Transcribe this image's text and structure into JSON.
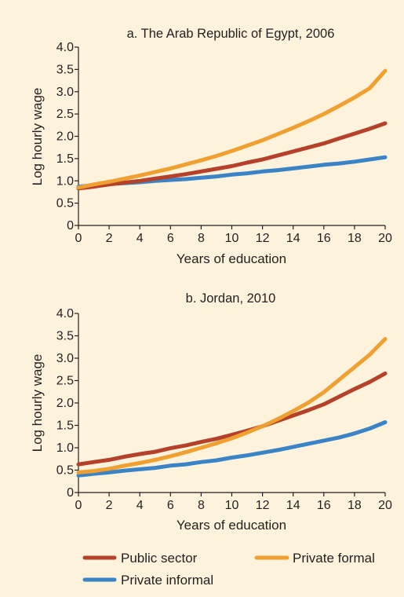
{
  "chart_data": [
    {
      "type": "line",
      "title": "a. The Arab Republic of Egypt, 2006",
      "xlabel": "Years of education",
      "ylabel": "Log hourly wage",
      "xlim": [
        0,
        20
      ],
      "ylim": [
        0,
        4.0
      ],
      "x_ticks": [
        "0",
        "2",
        "4",
        "6",
        "8",
        "10",
        "12",
        "14",
        "16",
        "18",
        "20"
      ],
      "y_ticks": [
        "0",
        "0.5",
        "1.0",
        "1.5",
        "2.0",
        "2.5",
        "3.0",
        "3.5",
        "4.0"
      ],
      "x": [
        0,
        1,
        2,
        3,
        4,
        5,
        6,
        7,
        8,
        9,
        10,
        11,
        12,
        13,
        14,
        15,
        16,
        17,
        18,
        19,
        20
      ],
      "series": [
        {
          "name": "Public sector",
          "color": "#b5412a",
          "values": [
            0.83,
            0.87,
            0.92,
            0.96,
            1.0,
            1.05,
            1.1,
            1.15,
            1.21,
            1.27,
            1.33,
            1.41,
            1.48,
            1.57,
            1.66,
            1.75,
            1.84,
            1.95,
            2.06,
            2.17,
            2.29
          ]
        },
        {
          "name": "Private formal",
          "color": "#f0a030",
          "values": [
            0.85,
            0.92,
            0.98,
            1.05,
            1.12,
            1.2,
            1.28,
            1.37,
            1.46,
            1.56,
            1.67,
            1.79,
            1.91,
            2.05,
            2.19,
            2.34,
            2.5,
            2.68,
            2.87,
            3.08,
            3.47
          ]
        },
        {
          "name": "Private informal",
          "color": "#3a83c6",
          "values": [
            0.87,
            0.9,
            0.93,
            0.95,
            0.97,
            1.0,
            1.02,
            1.04,
            1.07,
            1.1,
            1.14,
            1.17,
            1.21,
            1.24,
            1.28,
            1.32,
            1.36,
            1.39,
            1.43,
            1.48,
            1.53
          ]
        }
      ]
    },
    {
      "type": "line",
      "title": "b. Jordan, 2010",
      "xlabel": "Years of education",
      "ylabel": "Log hourly wage",
      "xlim": [
        0,
        20
      ],
      "ylim": [
        0,
        4.0
      ],
      "x_ticks": [
        "0",
        "2",
        "4",
        "6",
        "8",
        "10",
        "12",
        "14",
        "16",
        "18",
        "20"
      ],
      "y_ticks": [
        "0",
        "0.5",
        "1.0",
        "1.5",
        "2.0",
        "2.5",
        "3.0",
        "3.5",
        "4.0"
      ],
      "x": [
        0,
        1,
        2,
        3,
        4,
        5,
        6,
        7,
        8,
        9,
        10,
        11,
        12,
        13,
        14,
        15,
        16,
        17,
        18,
        19,
        20
      ],
      "series": [
        {
          "name": "Public sector",
          "color": "#b5412a",
          "values": [
            0.63,
            0.68,
            0.73,
            0.8,
            0.86,
            0.91,
            0.99,
            1.05,
            1.13,
            1.2,
            1.29,
            1.38,
            1.48,
            1.6,
            1.72,
            1.84,
            1.97,
            2.14,
            2.31,
            2.47,
            2.66
          ]
        },
        {
          "name": "Private formal",
          "color": "#f0a030",
          "values": [
            0.45,
            0.48,
            0.53,
            0.6,
            0.66,
            0.73,
            0.81,
            0.9,
            1.0,
            1.1,
            1.21,
            1.34,
            1.48,
            1.64,
            1.82,
            2.01,
            2.24,
            2.52,
            2.8,
            3.08,
            3.43
          ]
        },
        {
          "name": "Private informal",
          "color": "#3a83c6",
          "values": [
            0.38,
            0.42,
            0.45,
            0.49,
            0.52,
            0.55,
            0.6,
            0.63,
            0.68,
            0.72,
            0.78,
            0.83,
            0.89,
            0.95,
            1.02,
            1.09,
            1.16,
            1.23,
            1.32,
            1.43,
            1.57
          ]
        }
      ]
    }
  ],
  "legend": {
    "items": [
      {
        "label": "Public sector",
        "color": "#b5412a"
      },
      {
        "label": "Private formal",
        "color": "#f0a030"
      },
      {
        "label": "Private informal",
        "color": "#3a83c6"
      }
    ]
  }
}
